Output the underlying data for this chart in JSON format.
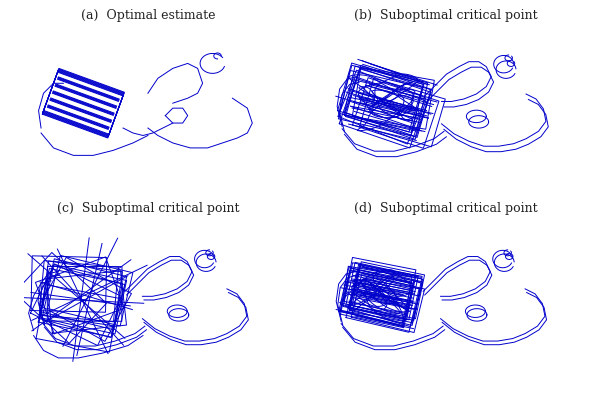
{
  "titles": [
    "(a)  Optimal estimate",
    "(b)  Suboptimal critical point",
    "(c)  Suboptimal critical point",
    "(d)  Suboptimal critical point"
  ],
  "line_color": "#0000cc",
  "line_width": 0.7,
  "background": "#ffffff",
  "fig_width": 5.94,
  "fig_height": 3.94,
  "title_fontsize": 9
}
